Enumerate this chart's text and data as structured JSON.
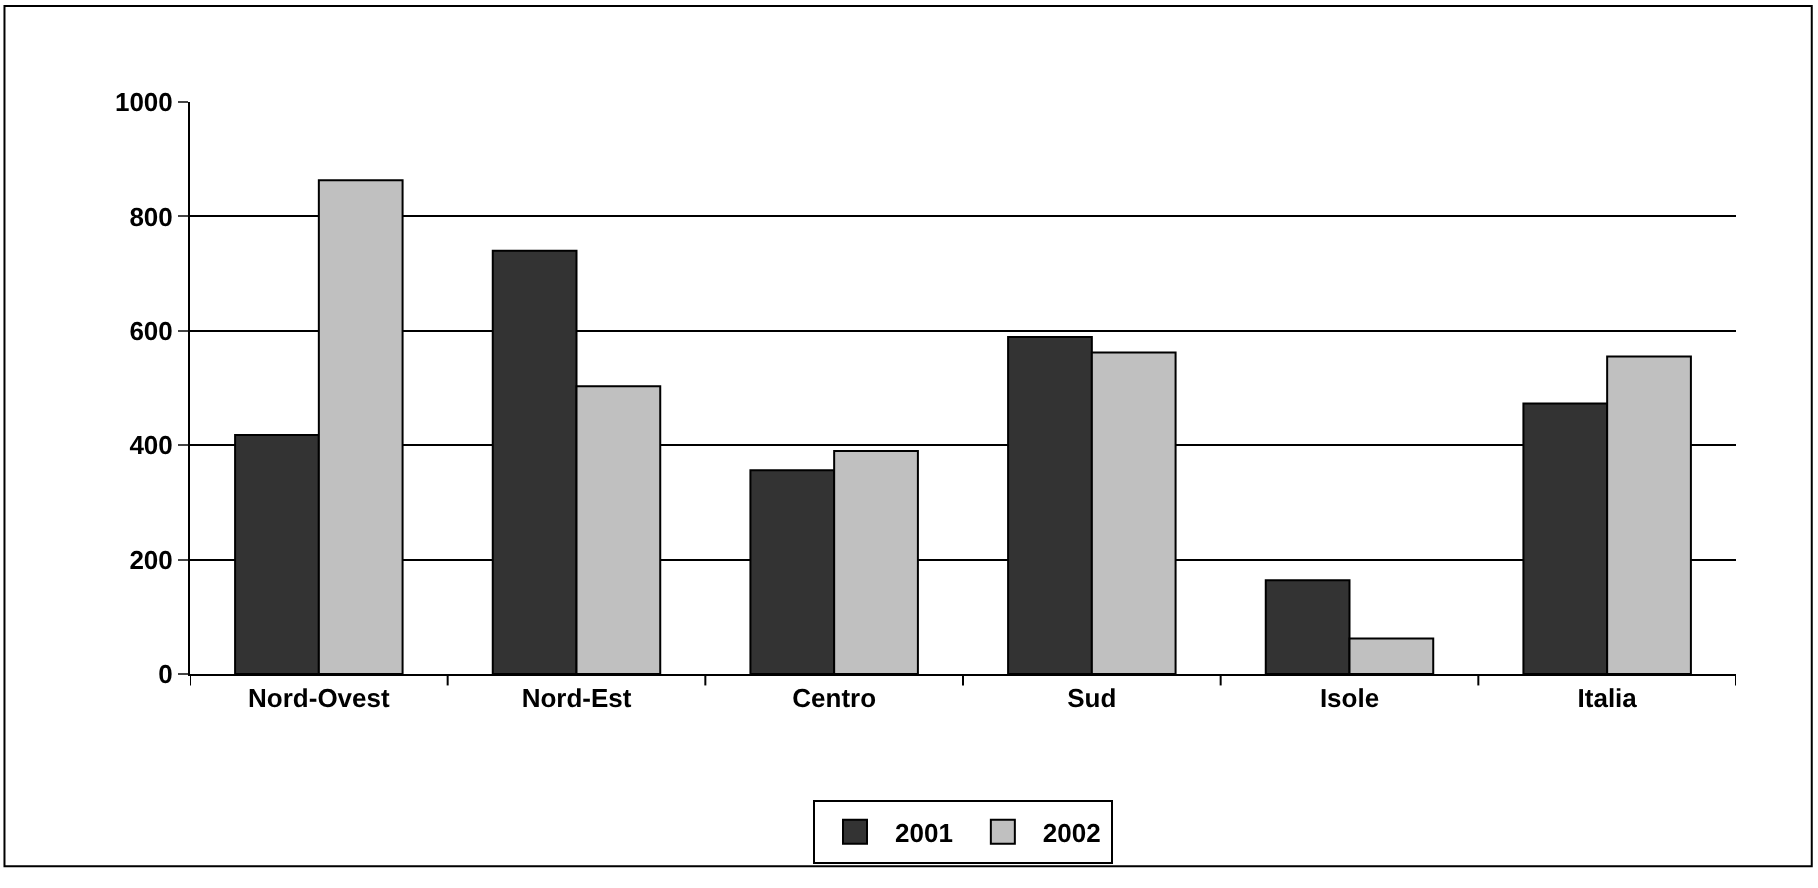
{
  "chart_data": {
    "type": "bar",
    "categories": [
      "Nord-Ovest",
      "Nord-Est",
      "Centro",
      "Sud",
      "Isole",
      "Italia"
    ],
    "series": [
      {
        "name": "2001",
        "color": "#333333",
        "values": [
          418,
          740,
          356,
          589,
          164,
          473
        ]
      },
      {
        "name": "2002",
        "color": "#c0c0c0",
        "values": [
          863,
          503,
          390,
          562,
          62,
          555
        ]
      }
    ],
    "ylim": [
      0,
      1000
    ],
    "yticks": [
      0,
      200,
      400,
      600,
      800,
      1000
    ],
    "grid": "y",
    "legend": "bottom"
  }
}
